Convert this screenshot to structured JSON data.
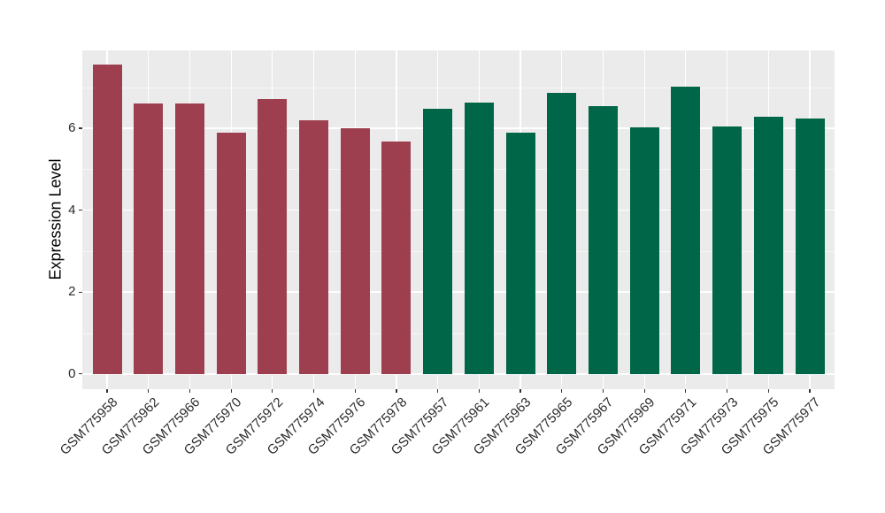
{
  "chart_data": {
    "type": "bar",
    "title": "",
    "xlabel": "",
    "ylabel": "Expression Level",
    "yticks": [
      0,
      2,
      4,
      6
    ],
    "minor_gridlines": [
      1,
      3,
      5,
      7
    ],
    "ylim": [
      -0.37,
      7.9
    ],
    "grid": "horizontal major+minor white lines, vertical white line at each category center",
    "legend_position": "none",
    "panel_background": "#EBEBEB",
    "gridline_color": "#FFFFFF",
    "group_colors": {
      "left_group": "#9E3F50",
      "right_group": "#006648"
    },
    "categories": [
      "GSM775958",
      "GSM775962",
      "GSM775966",
      "GSM775970",
      "GSM775972",
      "GSM775974",
      "GSM775976",
      "GSM775978",
      "GSM775957",
      "GSM775961",
      "GSM775963",
      "GSM775965",
      "GSM775967",
      "GSM775969",
      "GSM775971",
      "GSM775973",
      "GSM775975",
      "GSM775977"
    ],
    "values": [
      7.56,
      6.61,
      6.6,
      5.9,
      6.72,
      6.19,
      6.01,
      5.68,
      6.47,
      6.62,
      5.9,
      6.86,
      6.53,
      6.03,
      7.01,
      6.04,
      6.29,
      6.23
    ],
    "bars": [
      {
        "label": "GSM775958",
        "value": 7.56,
        "color": "#9E3F50"
      },
      {
        "label": "GSM775962",
        "value": 6.61,
        "color": "#9E3F50"
      },
      {
        "label": "GSM775966",
        "value": 6.6,
        "color": "#9E3F50"
      },
      {
        "label": "GSM775970",
        "value": 5.9,
        "color": "#9E3F50"
      },
      {
        "label": "GSM775972",
        "value": 6.72,
        "color": "#9E3F50"
      },
      {
        "label": "GSM775974",
        "value": 6.19,
        "color": "#9E3F50"
      },
      {
        "label": "GSM775976",
        "value": 6.01,
        "color": "#9E3F50"
      },
      {
        "label": "GSM775978",
        "value": 5.68,
        "color": "#9E3F50"
      },
      {
        "label": "GSM775957",
        "value": 6.47,
        "color": "#006648"
      },
      {
        "label": "GSM775961",
        "value": 6.62,
        "color": "#006648"
      },
      {
        "label": "GSM775963",
        "value": 5.9,
        "color": "#006648"
      },
      {
        "label": "GSM775965",
        "value": 6.86,
        "color": "#006648"
      },
      {
        "label": "GSM775967",
        "value": 6.53,
        "color": "#006648"
      },
      {
        "label": "GSM775969",
        "value": 6.03,
        "color": "#006648"
      },
      {
        "label": "GSM775971",
        "value": 7.01,
        "color": "#006648"
      },
      {
        "label": "GSM775973",
        "value": 6.04,
        "color": "#006648"
      },
      {
        "label": "GSM775975",
        "value": 6.29,
        "color": "#006648"
      },
      {
        "label": "GSM775977",
        "value": 6.23,
        "color": "#006648"
      }
    ]
  }
}
